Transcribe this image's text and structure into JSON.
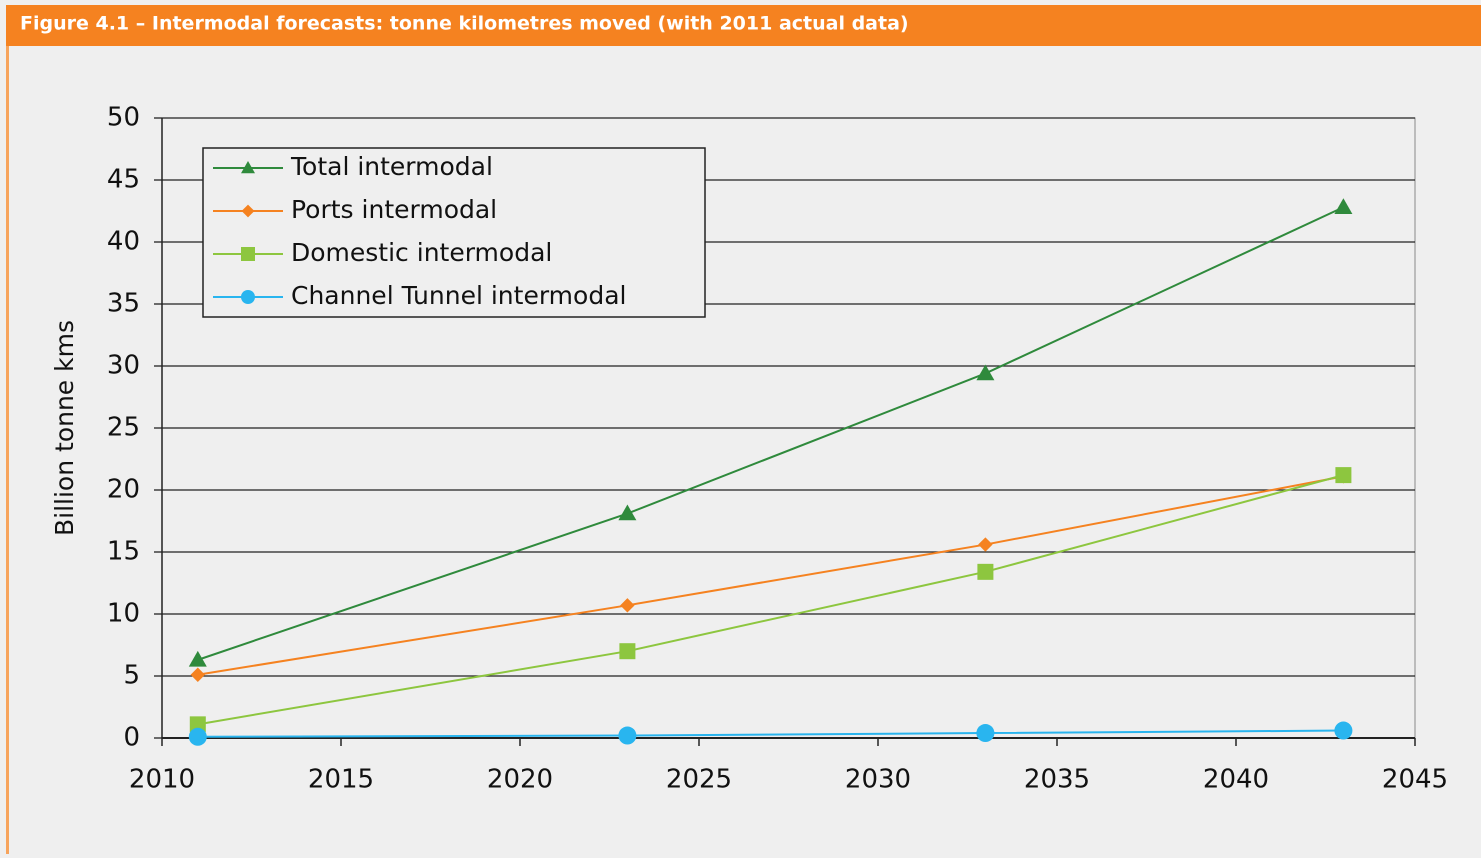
{
  "chart_data": {
    "type": "line",
    "title": "Figure 4.1 – Intermodal forecasts: tonne kilometres moved (with 2011 actual data)",
    "y_label": "Billion tonne kms",
    "x": [
      2011,
      2023,
      2033,
      2043
    ],
    "series": [
      {
        "name": "Total intermodal",
        "color": "#2f8a3c",
        "marker": "triangle",
        "values": [
          6.3,
          18.1,
          29.4,
          42.8
        ]
      },
      {
        "name": "Ports intermodal",
        "color": "#f58220",
        "marker": "diamond",
        "values": [
          5.1,
          10.7,
          15.6,
          21.1
        ]
      },
      {
        "name": "Domestic intermodal",
        "color": "#8dc63f",
        "marker": "square",
        "values": [
          1.1,
          7.0,
          13.4,
          21.2
        ]
      },
      {
        "name": "Channel Tunnel intermodal",
        "color": "#29b5ef",
        "marker": "circle",
        "values": [
          0.1,
          0.2,
          0.4,
          0.6
        ]
      }
    ],
    "xlim": [
      2010,
      2045
    ],
    "xticks": [
      2010,
      2015,
      2020,
      2025,
      2030,
      2035,
      2040,
      2045
    ],
    "ylim": [
      0,
      50
    ],
    "yticks": [
      0,
      5,
      10,
      15,
      20,
      25,
      30,
      35,
      40,
      45,
      50
    ],
    "grid": true,
    "legend": "upper left"
  }
}
